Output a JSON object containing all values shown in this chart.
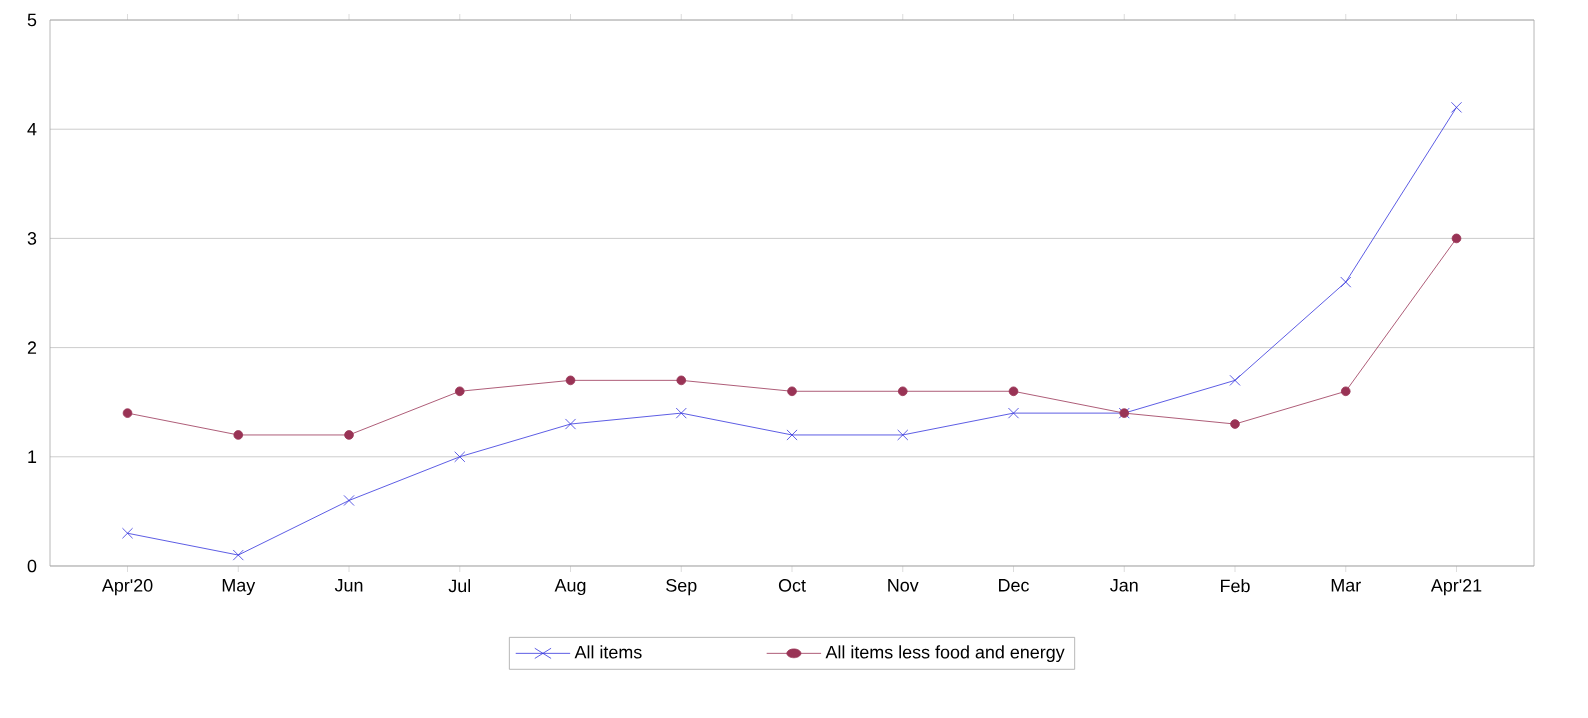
{
  "chart_data": {
    "type": "line",
    "categories": [
      "Apr'20",
      "May",
      "Jun",
      "Jul",
      "Aug",
      "Sep",
      "Oct",
      "Nov",
      "Dec",
      "Jan",
      "Feb",
      "Mar",
      "Apr'21"
    ],
    "series": [
      {
        "name": "All items",
        "color": "#3333dd",
        "marker": "cross",
        "values": [
          0.3,
          0.1,
          0.6,
          1.0,
          1.3,
          1.4,
          1.2,
          1.2,
          1.4,
          1.4,
          1.7,
          2.6,
          4.2
        ]
      },
      {
        "name": "All items less food and energy",
        "color": "#993355",
        "marker": "circle",
        "values": [
          1.4,
          1.2,
          1.2,
          1.6,
          1.7,
          1.7,
          1.6,
          1.6,
          1.6,
          1.4,
          1.3,
          1.6,
          3.0
        ]
      }
    ],
    "ylim": [
      0,
      5
    ],
    "yticks": [
      0,
      1,
      2,
      3,
      4,
      5
    ],
    "grid": "y",
    "legend": "bottom"
  }
}
